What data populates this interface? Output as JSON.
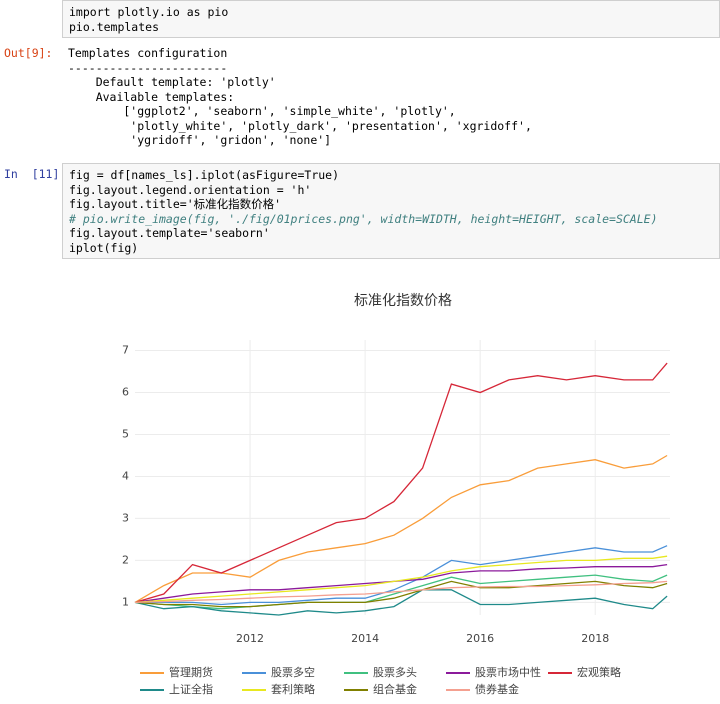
{
  "cells": [
    {
      "input": [
        "import plotly.io as pio",
        "pio.templates"
      ]
    },
    {
      "prompt": "Out[9]:",
      "output": [
        "Templates configuration",
        "-----------------------",
        "    Default template: 'plotly'",
        "    Available templates:",
        "        ['ggplot2', 'seaborn', 'simple_white', 'plotly',",
        "         'plotly_white', 'plotly_dark', 'presentation', 'xgridoff',",
        "         'ygridoff', 'gridon', 'none']"
      ]
    },
    {
      "prompt": "In  [11]:",
      "input": [
        "fig = df[names_ls].iplot(asFigure=True)",
        "fig.layout.legend.orientation = 'h'",
        "fig.layout.title='标准化指数价格'",
        "# pio.write_image(fig, './fig/01prices.png', width=WIDTH, height=HEIGHT, scale=SCALE)",
        "fig.layout.template='seaborn'",
        "iplot(fig)"
      ]
    }
  ],
  "chart_data": {
    "type": "line",
    "title": "标准化指数价格",
    "x": [
      2010.0,
      2010.5,
      2011.0,
      2011.5,
      2012.0,
      2012.5,
      2013.0,
      2013.5,
      2014.0,
      2014.5,
      2015.0,
      2015.5,
      2016.0,
      2016.5,
      2017.0,
      2017.5,
      2018.0,
      2018.5,
      2019.0,
      2019.25
    ],
    "xlim": [
      2010,
      2019.3
    ],
    "xticks": [
      2012,
      2014,
      2016,
      2018
    ],
    "ylim": [
      0.7,
      7.25
    ],
    "yticks": [
      1,
      2,
      3,
      4,
      5,
      6,
      7
    ],
    "grid": true,
    "legend": "bottom",
    "series": [
      {
        "name": "管理期货",
        "color": "#f99d3a",
        "values": [
          1.0,
          1.4,
          1.7,
          1.7,
          1.6,
          2.0,
          2.2,
          2.3,
          2.4,
          2.6,
          3.0,
          3.5,
          3.8,
          3.9,
          4.2,
          4.3,
          4.4,
          4.2,
          4.3,
          4.5
        ]
      },
      {
        "name": "股票多空",
        "color": "#4a90d9",
        "values": [
          1.0,
          1.0,
          1.0,
          0.95,
          1.0,
          1.0,
          1.05,
          1.1,
          1.1,
          1.3,
          1.6,
          2.0,
          1.9,
          2.0,
          2.1,
          2.2,
          2.3,
          2.2,
          2.2,
          2.35
        ]
      },
      {
        "name": "股票多头",
        "color": "#40c080",
        "values": [
          1.0,
          0.95,
          0.9,
          0.85,
          0.9,
          0.95,
          1.0,
          1.0,
          1.0,
          1.2,
          1.4,
          1.6,
          1.45,
          1.5,
          1.55,
          1.6,
          1.65,
          1.55,
          1.5,
          1.65
        ]
      },
      {
        "name": "股票市场中性",
        "color": "#8b1a9b",
        "values": [
          1.0,
          1.1,
          1.2,
          1.25,
          1.3,
          1.3,
          1.35,
          1.4,
          1.45,
          1.5,
          1.55,
          1.7,
          1.75,
          1.75,
          1.8,
          1.82,
          1.85,
          1.85,
          1.85,
          1.9
        ]
      },
      {
        "name": "宏观策略",
        "color": "#d62738",
        "values": [
          1.0,
          1.2,
          1.9,
          1.7,
          2.0,
          2.3,
          2.6,
          2.9,
          3.0,
          3.4,
          4.2,
          6.2,
          6.0,
          6.3,
          6.4,
          6.3,
          6.4,
          6.3,
          6.3,
          6.7
        ]
      },
      {
        "name": "上证全指",
        "color": "#1f8a8a",
        "values": [
          1.0,
          0.85,
          0.9,
          0.8,
          0.75,
          0.7,
          0.8,
          0.75,
          0.8,
          0.9,
          1.3,
          1.3,
          0.95,
          0.95,
          1.0,
          1.05,
          1.1,
          0.95,
          0.85,
          1.15
        ]
      },
      {
        "name": "套利策略",
        "color": "#e8e820",
        "values": [
          1.0,
          1.05,
          1.1,
          1.15,
          1.2,
          1.25,
          1.3,
          1.35,
          1.4,
          1.5,
          1.6,
          1.75,
          1.85,
          1.9,
          1.95,
          2.0,
          2.0,
          2.05,
          2.05,
          2.1
        ]
      },
      {
        "name": "组合基金",
        "color": "#808000",
        "values": [
          1.0,
          0.95,
          0.95,
          0.9,
          0.9,
          0.95,
          1.0,
          1.0,
          1.0,
          1.1,
          1.3,
          1.5,
          1.35,
          1.35,
          1.4,
          1.45,
          1.5,
          1.4,
          1.35,
          1.45
        ]
      },
      {
        "name": "债券基金",
        "color": "#f4a090",
        "values": [
          1.0,
          1.02,
          1.05,
          1.07,
          1.1,
          1.13,
          1.15,
          1.18,
          1.2,
          1.25,
          1.3,
          1.35,
          1.37,
          1.38,
          1.38,
          1.4,
          1.42,
          1.45,
          1.47,
          1.5
        ]
      }
    ]
  }
}
